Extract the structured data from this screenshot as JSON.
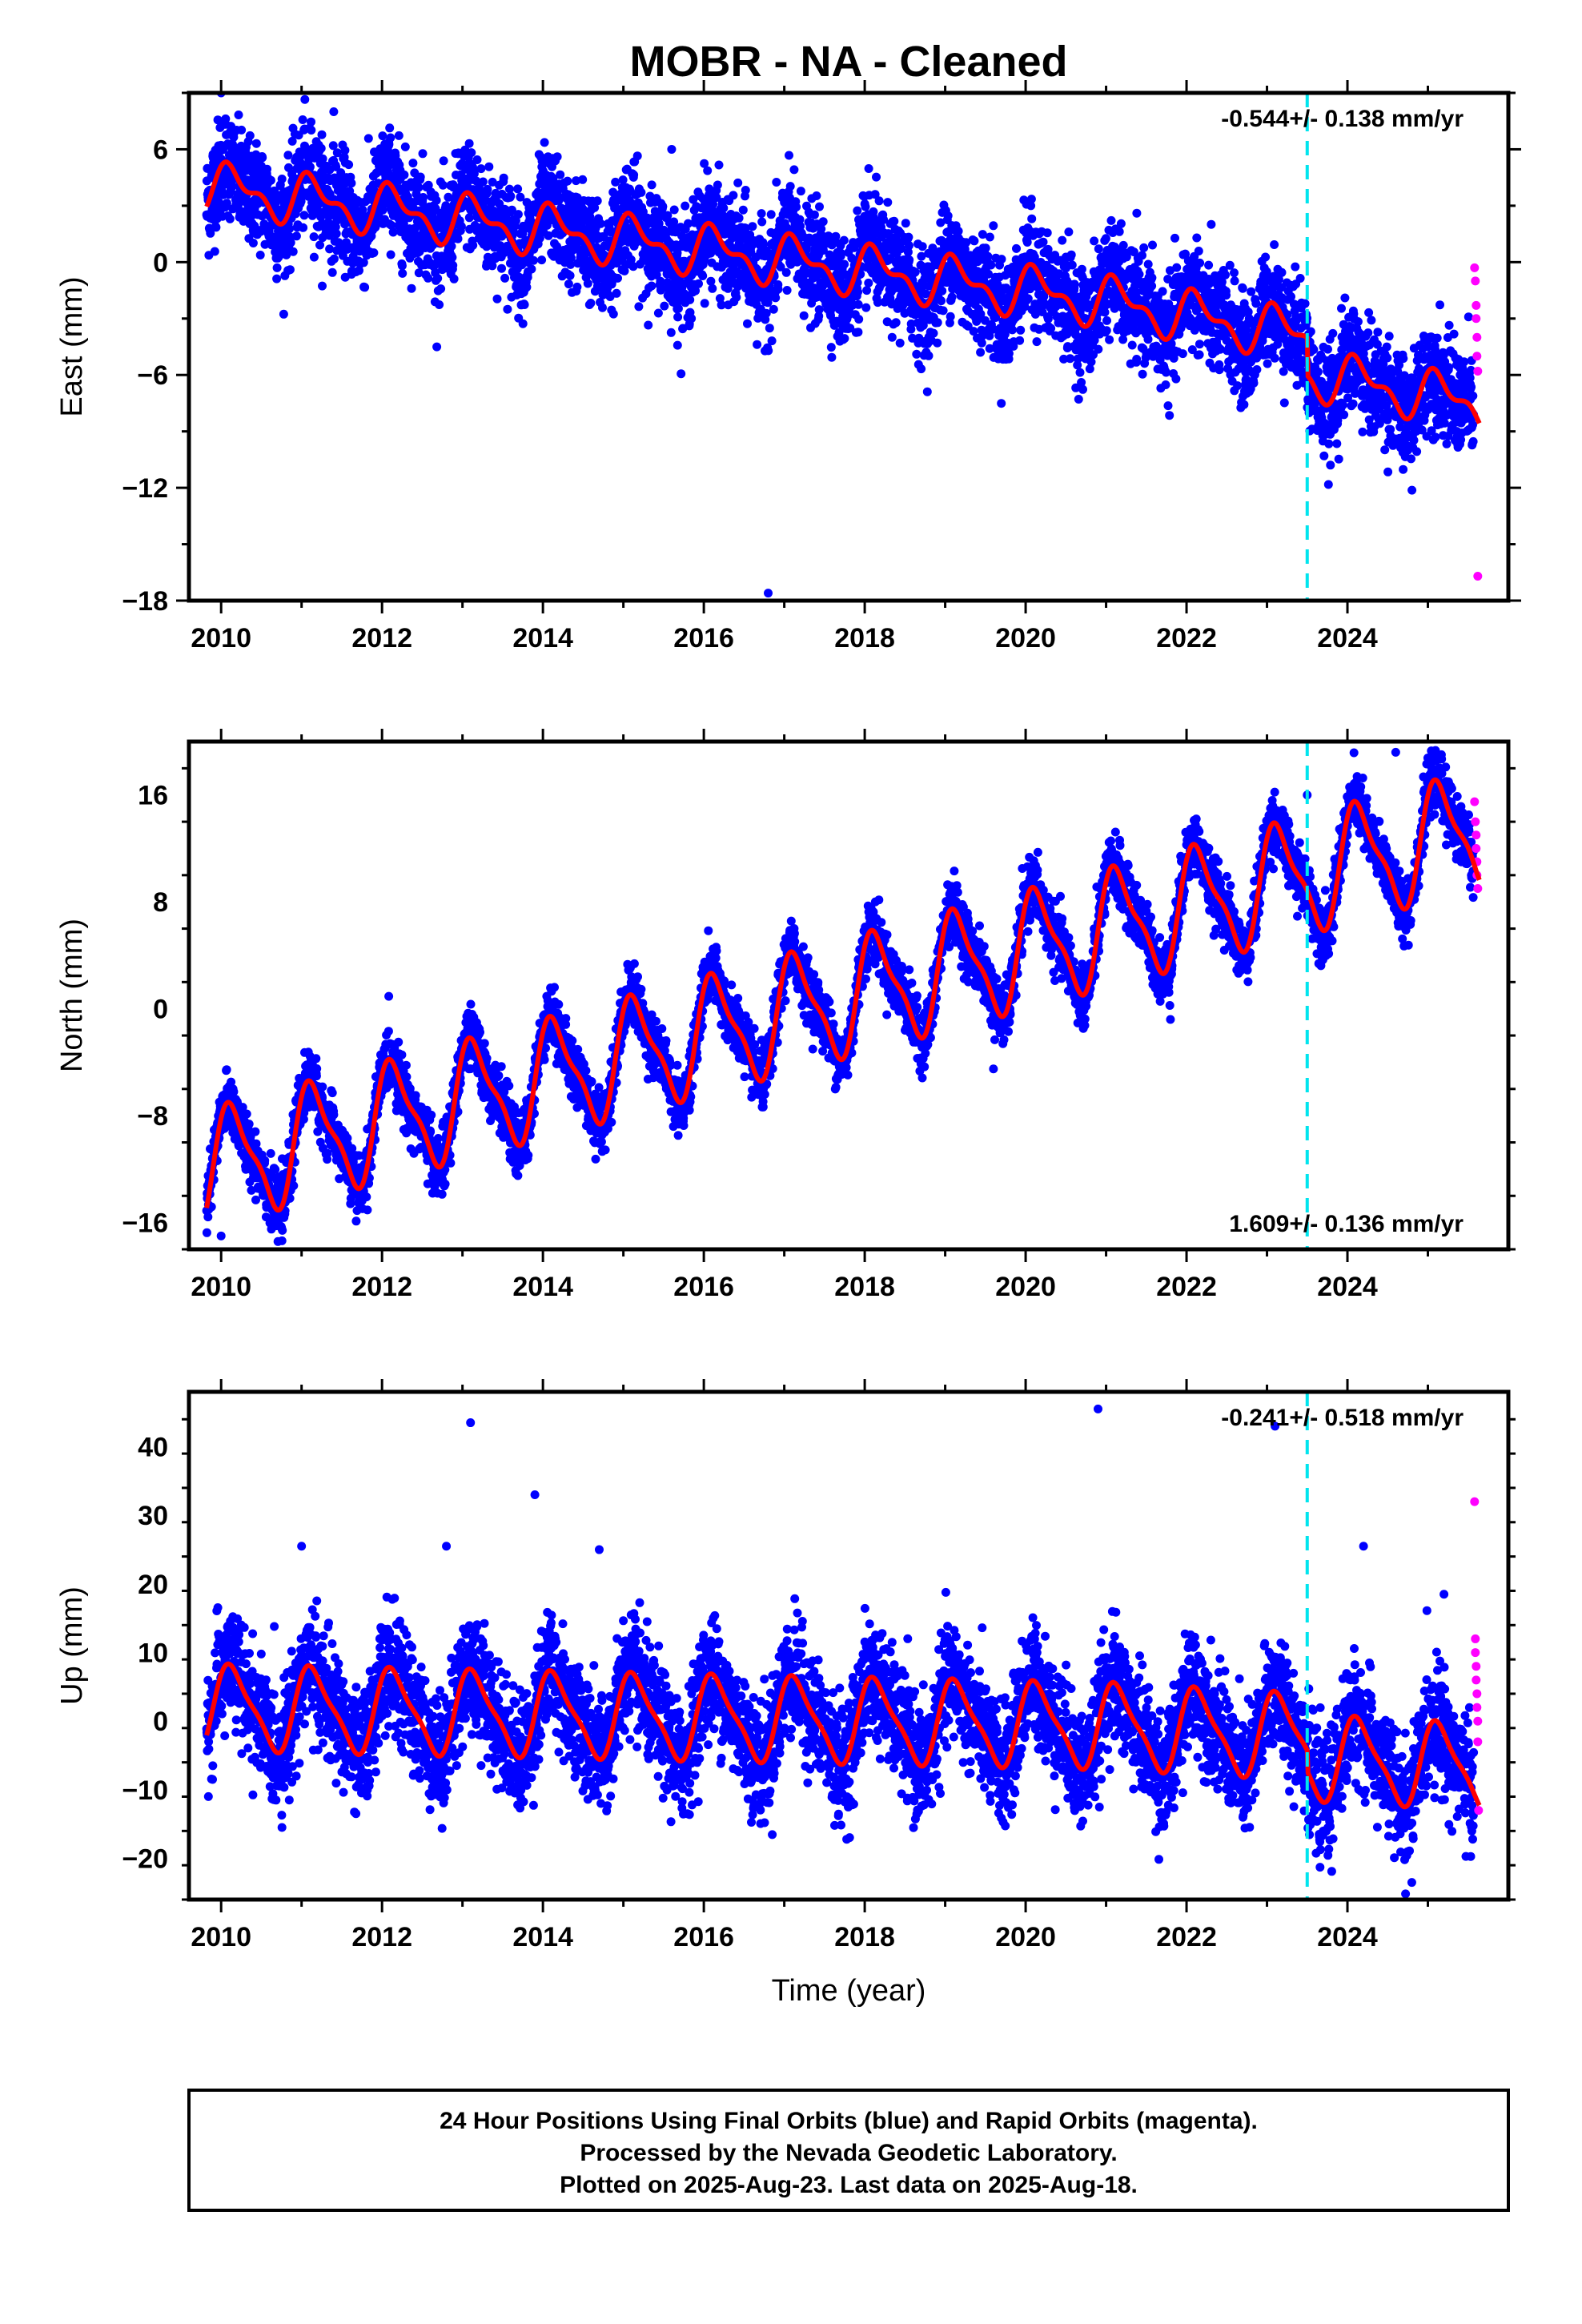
{
  "title": "MOBR  - NA - Cleaned",
  "xlabel": "Time (year)",
  "colors": {
    "final": "#0000ff",
    "rapid": "#ff00ff",
    "model": "#ff0000",
    "break_line": "#00e5ee",
    "frame": "#000000"
  },
  "footer": {
    "line1": "24 Hour Positions Using Final Orbits (blue) and Rapid Orbits (magenta).",
    "line2": "Processed by the Nevada Geodetic Laboratory.",
    "line3": "Plotted on 2025-Aug-23. Last data on 2025-Aug-18."
  },
  "chart_data": [
    {
      "type": "scatter",
      "component": "east",
      "ylabel": "East (mm)",
      "rate_label": "-0.544+/- 0.138 mm/yr",
      "xlim": [
        2009.6,
        2026.0
      ],
      "ylim": [
        -18,
        9
      ],
      "x_ticks": [
        2010,
        2012,
        2014,
        2016,
        2018,
        2020,
        2022,
        2024
      ],
      "y_ticks": [
        -18,
        -12,
        -6,
        0,
        6
      ],
      "equipment_change_year": 2023.5,
      "model": {
        "x0": 2009.8,
        "offset": 4.0,
        "rate_mm_per_yr": -0.544,
        "annual_amplitude": 1.1,
        "semiannual_amplitude": 0.6,
        "step_at_break": -2.0,
        "extra_trend_after_2021": -0.2
      },
      "scatter_sigma": 1.4,
      "outliers": [
        [
          2010.0,
          9.0
        ],
        [
          2013.1,
          9.2
        ],
        [
          2016.8,
          -17.6
        ],
        [
          2011.4,
          8.0
        ],
        [
          2015.6,
          6.0
        ]
      ],
      "rapid_orbit_points": [
        [
          2025.58,
          -0.3
        ],
        [
          2025.59,
          -1.0
        ],
        [
          2025.6,
          -2.3
        ],
        [
          2025.6,
          -3.0
        ],
        [
          2025.61,
          -4.0
        ],
        [
          2025.61,
          -5.0
        ],
        [
          2025.62,
          -5.8
        ],
        [
          2025.62,
          -16.7
        ]
      ]
    },
    {
      "type": "scatter",
      "component": "north",
      "ylabel": "North (mm)",
      "rate_label": "1.609+/- 0.136 mm/yr",
      "xlim": [
        2009.6,
        2026.0
      ],
      "ylim": [
        -18,
        20
      ],
      "x_ticks": [
        2010,
        2012,
        2014,
        2016,
        2018,
        2020,
        2022,
        2024
      ],
      "y_ticks": [
        -16,
        -8,
        0,
        8,
        16
      ],
      "equipment_change_year": 2023.5,
      "model": {
        "x0": 2009.8,
        "offset": -12.0,
        "rate_mm_per_yr": 1.609,
        "annual_amplitude": 4.0,
        "semiannual_amplitude": 1.2,
        "step_at_break": 0.0,
        "extra_trend_after_2021": 0.0
      },
      "scatter_sigma": 1.1,
      "outliers": [
        [
          2010.0,
          -17.0
        ],
        [
          2021.8,
          -0.8
        ],
        [
          2019.6,
          -4.5
        ],
        [
          2024.6,
          19.2
        ],
        [
          2023.5,
          16.0
        ]
      ],
      "rapid_orbit_points": [
        [
          2025.58,
          15.5
        ],
        [
          2025.59,
          14.0
        ],
        [
          2025.6,
          13.0
        ],
        [
          2025.6,
          12.0
        ],
        [
          2025.61,
          11.0
        ],
        [
          2025.61,
          10.0
        ],
        [
          2025.62,
          9.0
        ]
      ]
    },
    {
      "type": "scatter",
      "component": "up",
      "ylabel": "Up (mm)",
      "rate_label": "-0.241+/- 0.518 mm/yr",
      "xlim": [
        2009.6,
        2026.0
      ],
      "ylim": [
        -26,
        48
      ],
      "x_ticks": [
        2010,
        2012,
        2014,
        2016,
        2018,
        2020,
        2022,
        2024
      ],
      "y_ticks": [
        -20,
        -10,
        0,
        10,
        20,
        30,
        40
      ],
      "equipment_change_year": 2023.5,
      "model": {
        "x0": 2009.8,
        "offset": 2.0,
        "rate_mm_per_yr": -0.241,
        "annual_amplitude": 5.8,
        "semiannual_amplitude": 1.5,
        "step_at_break": -3.0,
        "extra_trend_after_2021": -0.4
      },
      "scatter_sigma": 4.2,
      "outliers": [
        [
          2013.1,
          43.5
        ],
        [
          2013.9,
          33.0
        ],
        [
          2020.9,
          45.5
        ],
        [
          2023.1,
          43.0
        ],
        [
          2024.2,
          25.5
        ],
        [
          2012.8,
          25.5
        ],
        [
          2014.7,
          25.0
        ],
        [
          2011.0,
          25.5
        ],
        [
          2025.2,
          18.5
        ],
        [
          2024.8,
          -23.5
        ]
      ],
      "rapid_orbit_points": [
        [
          2025.58,
          32.0
        ],
        [
          2025.59,
          12.0
        ],
        [
          2025.59,
          10.0
        ],
        [
          2025.6,
          8.0
        ],
        [
          2025.6,
          6.0
        ],
        [
          2025.61,
          4.0
        ],
        [
          2025.61,
          2.0
        ],
        [
          2025.62,
          0.0
        ],
        [
          2025.62,
          -3.0
        ],
        [
          2025.63,
          -13.0
        ]
      ]
    }
  ]
}
